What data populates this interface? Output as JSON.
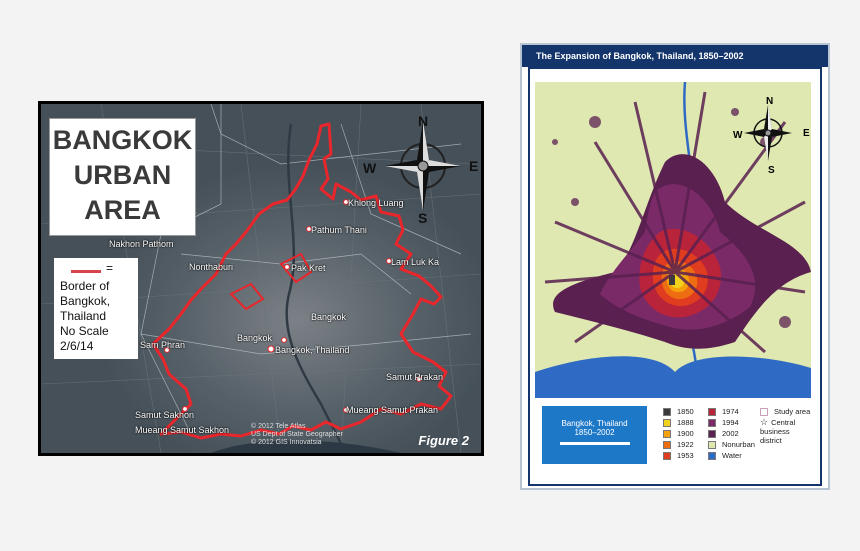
{
  "figure2": {
    "title_lines": [
      "BANGKOK",
      "URBAN",
      "AREA"
    ],
    "legend": {
      "symbol": "=",
      "lines": [
        "Border of",
        "Bangkok,",
        "Thailand",
        "No Scale",
        "2/6/14"
      ],
      "line_color": "#d9434b"
    },
    "places": {
      "khlong_luang": "Khlong Luang",
      "pathum_thani": "Pathum Thani",
      "nakhon_pathom": "Nakhon Pathom",
      "nonthaburi": "Nonthaburi",
      "pak_kret": "Pak Kret",
      "lam_luk_ka": "Lam Luk Ka",
      "bangkok": "Bangkok",
      "bangkok_pin": "Bangkok",
      "bangkok_thailand": "Bangkok, Thailand",
      "sam_phran": "Sam Phran",
      "samut_prakan": "Samut Prakan",
      "samut_sakhon": "Samut Sakhon",
      "mueang_samut_sakhon": "Mueang Samut Sakhon",
      "mueang_samut_prakan": "Mueang Samut Prakan"
    },
    "compass": {
      "n": "N",
      "s": "S",
      "e": "E",
      "w": "W"
    },
    "copyright": [
      "© 2012 Tele Atlas",
      "US Dept of State Geographer",
      "© 2012 GIS Innovatsia"
    ],
    "caption": "Figure 2",
    "border_color": "#e8262b"
  },
  "expansion": {
    "title": "The Expansion of Bangkok, Thailand, 1850–2002",
    "key_title_lines": [
      "Bangkok, Thailand",
      "1850–2002"
    ],
    "compass": {
      "n": "N",
      "s": "S",
      "e": "E",
      "w": "W"
    },
    "legend": [
      {
        "label": "1850",
        "color": "#3b3b3b"
      },
      {
        "label": "1888",
        "color": "#f3d21d"
      },
      {
        "label": "1900",
        "color": "#f5a10c"
      },
      {
        "label": "1922",
        "color": "#ef6d12"
      },
      {
        "label": "1953",
        "color": "#e03c1f"
      },
      {
        "label": "1974",
        "color": "#b9243a"
      },
      {
        "label": "1994",
        "color": "#7b2a68"
      },
      {
        "label": "2002",
        "color": "#5a2050"
      },
      {
        "label": "Nonurban",
        "color": "#dfe8b0"
      },
      {
        "label": "Water",
        "color": "#2f6bc4"
      },
      {
        "label": "Study area",
        "color": "#ffffff"
      },
      {
        "label": "Central business district",
        "color": "#ffffff"
      }
    ],
    "nonurban_color": "#dfe8b0",
    "water_color": "#2f6bc4"
  }
}
